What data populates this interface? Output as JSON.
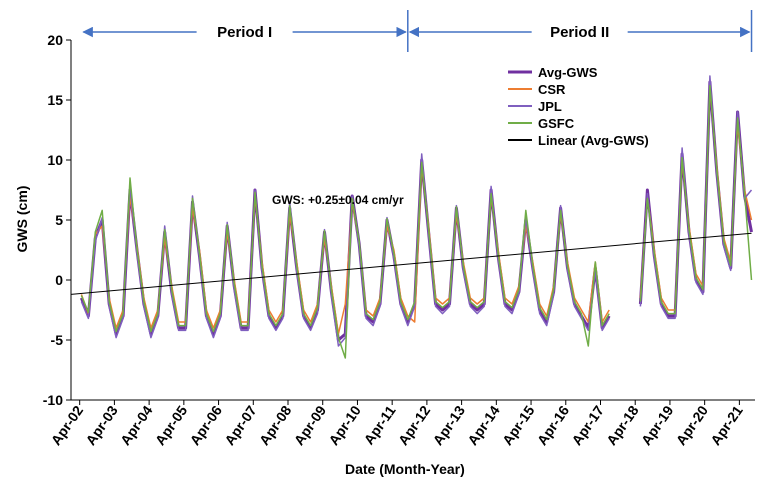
{
  "chart_data": {
    "type": "line",
    "title": "",
    "xlabel": "Date (Month-Year)",
    "ylabel": "GWS (cm)",
    "ylim": [
      -10,
      20
    ],
    "y_ticks": [
      -10,
      -5,
      0,
      5,
      10,
      15,
      20
    ],
    "x_ticks": [
      "Apr-02",
      "Apr-03",
      "Apr-04",
      "Apr-05",
      "Apr-06",
      "Apr-07",
      "Apr-08",
      "Apr-09",
      "Apr-10",
      "Apr-11",
      "Apr-12",
      "Apr-13",
      "Apr-14",
      "Apr-15",
      "Apr-16",
      "Apr-17",
      "Apr-18",
      "Apr-19",
      "Apr-20",
      "Apr-21"
    ],
    "grid": false,
    "legend_position": "top-right",
    "annotation": "GWS: +0.25±0.04  cm/yr",
    "periods": [
      {
        "label": "Period I",
        "start": 2002.3,
        "end": 2011.7
      },
      {
        "label": "Period II",
        "start": 2011.7,
        "end": 2021.6
      }
    ],
    "trend": {
      "name": "Linear (Avg-GWS)",
      "start": [
        2002.0,
        -1.2
      ],
      "end": [
        2021.6,
        3.9
      ]
    },
    "series": [
      {
        "name": "Avg-GWS",
        "color": "#7030a0",
        "width": 3.0,
        "x": [
          2002.3,
          2002.5,
          2002.7,
          2002.9,
          2003.1,
          2003.3,
          2003.5,
          2003.7,
          2003.9,
          2004.1,
          2004.3,
          2004.5,
          2004.7,
          2004.9,
          2005.1,
          2005.3,
          2005.5,
          2005.7,
          2005.9,
          2006.1,
          2006.3,
          2006.5,
          2006.7,
          2006.9,
          2007.1,
          2007.3,
          2007.5,
          2007.7,
          2007.9,
          2008.1,
          2008.3,
          2008.5,
          2008.7,
          2008.9,
          2009.1,
          2009.3,
          2009.5,
          2009.7,
          2009.9,
          2010.1,
          2010.3,
          2010.5,
          2010.7,
          2010.9,
          2011.1,
          2011.3,
          2011.5,
          2011.7,
          2011.9,
          2012.1,
          2012.3,
          2012.5,
          2012.7,
          2012.9,
          2013.1,
          2013.3,
          2013.5,
          2013.7,
          2013.9,
          2014.1,
          2014.3,
          2014.5,
          2014.7,
          2014.9,
          2015.1,
          2015.3,
          2015.5,
          2015.7,
          2015.9,
          2016.1,
          2016.3,
          2016.5,
          2016.7,
          2016.9,
          2017.1,
          2017.3,
          2017.5,
          null,
          2018.4,
          2018.6,
          2018.8,
          2019.0,
          2019.2,
          2019.4,
          2019.6,
          2019.8,
          2020.0,
          2020.2,
          2020.4,
          2020.6,
          2020.8,
          2021.0,
          2021.2,
          2021.4,
          2021.6
        ],
        "y": [
          -1.5,
          -3,
          3.5,
          5,
          -2,
          -4.5,
          -3,
          7.5,
          2.5,
          -2,
          -4.5,
          -3,
          4,
          -1,
          -4,
          -4,
          6.5,
          2,
          -3,
          -4.5,
          -3,
          4.5,
          -0.5,
          -4,
          -4,
          7.5,
          1,
          -3,
          -4,
          -3,
          6,
          1,
          -3,
          -4,
          -2.5,
          4,
          -1,
          -5,
          -4.5,
          7,
          3,
          -3,
          -3.5,
          -2,
          5,
          2,
          -2,
          -3.5,
          -2,
          10,
          4,
          -2,
          -2.5,
          -2,
          6,
          1,
          -2,
          -2.5,
          -2,
          7.5,
          2,
          -2,
          -2.5,
          -1,
          5,
          1,
          -2.5,
          -3.5,
          -1,
          6,
          1,
          -2,
          -3,
          -4,
          1,
          -4,
          -3,
          null,
          -2,
          7.5,
          2,
          -2,
          -3,
          -3,
          10.5,
          4,
          0,
          -1,
          16.5,
          9,
          3,
          1,
          14,
          7,
          4
        ]
      },
      {
        "name": "CSR",
        "color": "#ed7d31",
        "width": 1.5,
        "x": [
          2002.3,
          2002.5,
          2002.7,
          2002.9,
          2003.1,
          2003.3,
          2003.5,
          2003.7,
          2003.9,
          2004.1,
          2004.3,
          2004.5,
          2004.7,
          2004.9,
          2005.1,
          2005.3,
          2005.5,
          2005.7,
          2005.9,
          2006.1,
          2006.3,
          2006.5,
          2006.7,
          2006.9,
          2007.1,
          2007.3,
          2007.5,
          2007.7,
          2007.9,
          2008.1,
          2008.3,
          2008.5,
          2008.7,
          2008.9,
          2009.1,
          2009.3,
          2009.5,
          2009.7,
          2009.9,
          2010.1,
          2010.3,
          2010.5,
          2010.7,
          2010.9,
          2011.1,
          2011.3,
          2011.5,
          2011.7,
          2011.9,
          2012.1,
          2012.3,
          2012.5,
          2012.7,
          2012.9,
          2013.1,
          2013.3,
          2013.5,
          2013.7,
          2013.9,
          2014.1,
          2014.3,
          2014.5,
          2014.7,
          2014.9,
          2015.1,
          2015.3,
          2015.5,
          2015.7,
          2015.9,
          2016.1,
          2016.3,
          2016.5,
          2016.7,
          2016.9,
          2017.1,
          2017.3,
          2017.5,
          null,
          2018.4,
          2018.6,
          2018.8,
          2019.0,
          2019.2,
          2019.4,
          2019.6,
          2019.8,
          2020.0,
          2020.2,
          2020.4,
          2020.6,
          2020.8,
          2021.0,
          2021.2,
          2021.4,
          2021.6
        ],
        "y": [
          -1.2,
          -2.8,
          3.8,
          4.5,
          -1.5,
          -4,
          -2.5,
          7,
          2.8,
          -1.5,
          -4,
          -2.5,
          3.5,
          -0.5,
          -3.5,
          -3.5,
          6,
          2.5,
          -2.5,
          -4,
          -2.5,
          4,
          0,
          -3.5,
          -3.5,
          7,
          1.5,
          -2.5,
          -3.5,
          -2.5,
          5.5,
          1.5,
          -2.5,
          -3.5,
          -2,
          3.5,
          -0.5,
          -4.5,
          -2,
          6.5,
          3,
          -2.5,
          -3,
          -1.5,
          4.5,
          2.5,
          -1.5,
          -3,
          -3.5,
          9.5,
          4.5,
          -1.5,
          -2,
          -1.5,
          5.5,
          1.5,
          -1.5,
          -2,
          -1.5,
          7,
          2.5,
          -1.5,
          -2,
          -0.5,
          4.5,
          1.5,
          -2,
          -3,
          -0.5,
          5.5,
          1.5,
          -1.5,
          -2.5,
          -3.5,
          1.5,
          -3.5,
          -2.5,
          null,
          -1.5,
          7,
          2.5,
          -1.5,
          -2.5,
          -2.5,
          10,
          4.5,
          0.5,
          -0.5,
          16,
          9.5,
          3.5,
          1.5,
          13,
          7.5,
          5
        ]
      },
      {
        "name": "JPL",
        "color": "#7f5fbf",
        "width": 1.5,
        "x": [
          2002.3,
          2002.5,
          2002.7,
          2002.9,
          2003.1,
          2003.3,
          2003.5,
          2003.7,
          2003.9,
          2004.1,
          2004.3,
          2004.5,
          2004.7,
          2004.9,
          2005.1,
          2005.3,
          2005.5,
          2005.7,
          2005.9,
          2006.1,
          2006.3,
          2006.5,
          2006.7,
          2006.9,
          2007.1,
          2007.3,
          2007.5,
          2007.7,
          2007.9,
          2008.1,
          2008.3,
          2008.5,
          2008.7,
          2008.9,
          2009.1,
          2009.3,
          2009.5,
          2009.7,
          2009.9,
          2010.1,
          2010.3,
          2010.5,
          2010.7,
          2010.9,
          2011.1,
          2011.3,
          2011.5,
          2011.7,
          2011.9,
          2012.1,
          2012.3,
          2012.5,
          2012.7,
          2012.9,
          2013.1,
          2013.3,
          2013.5,
          2013.7,
          2013.9,
          2014.1,
          2014.3,
          2014.5,
          2014.7,
          2014.9,
          2015.1,
          2015.3,
          2015.5,
          2015.7,
          2015.9,
          2016.1,
          2016.3,
          2016.5,
          2016.7,
          2016.9,
          2017.1,
          2017.3,
          2017.5,
          null,
          2018.4,
          2018.6,
          2018.8,
          2019.0,
          2019.2,
          2019.4,
          2019.6,
          2019.8,
          2020.0,
          2020.2,
          2020.4,
          2020.6,
          2020.8,
          2021.0,
          2021.2,
          2021.4,
          2021.6
        ],
        "y": [
          -1.8,
          -3.2,
          3.2,
          5.2,
          -2.2,
          -4.8,
          -3.2,
          7.8,
          2.2,
          -2.2,
          -4.8,
          -3.2,
          4.5,
          -1.2,
          -4.2,
          -4.2,
          7,
          1.8,
          -3.2,
          -4.8,
          -3.2,
          4.8,
          -0.8,
          -4.2,
          -4.2,
          7.5,
          0.8,
          -3.2,
          -4.2,
          -3.2,
          6.5,
          0.8,
          -3.2,
          -4.2,
          -2.8,
          4.2,
          -1.2,
          -5.5,
          -4.8,
          7,
          2.8,
          -3.2,
          -3.8,
          -2.2,
          5.2,
          1.8,
          -2.2,
          -3.8,
          -2.2,
          10.5,
          3.8,
          -2.2,
          -2.8,
          -2.2,
          6.2,
          0.8,
          -2.2,
          -2.8,
          -2.2,
          7.8,
          1.8,
          -2.2,
          -2.8,
          -1.2,
          5.2,
          0.8,
          -2.8,
          -3.8,
          -1.2,
          6.2,
          0.8,
          -2.2,
          -3.2,
          -4.2,
          0.8,
          -4.2,
          -3.2,
          null,
          -2.2,
          7.2,
          1.8,
          -2.2,
          -3.2,
          -3.2,
          11,
          3.8,
          -0.2,
          -1.2,
          17,
          8.8,
          2.8,
          0.8,
          14,
          6.8,
          7.5
        ]
      },
      {
        "name": "GSFC",
        "color": "#70ad47",
        "width": 1.5,
        "x": [
          2002.3,
          2002.5,
          2002.7,
          2002.9,
          2003.1,
          2003.3,
          2003.5,
          2003.7,
          2003.9,
          2004.1,
          2004.3,
          2004.5,
          2004.7,
          2004.9,
          2005.1,
          2005.3,
          2005.5,
          2005.7,
          2005.9,
          2006.1,
          2006.3,
          2006.5,
          2006.7,
          2006.9,
          2007.1,
          2007.3,
          2007.5,
          2007.7,
          2007.9,
          2008.1,
          2008.3,
          2008.5,
          2008.7,
          2008.9,
          2009.1,
          2009.3,
          2009.5,
          2009.7,
          2009.9,
          2010.1,
          2010.3,
          2010.5,
          2010.7,
          2010.9,
          2011.1,
          2011.3,
          2011.5,
          2011.7,
          2011.9,
          2012.1,
          2012.3,
          2012.5,
          2012.7,
          2012.9,
          2013.1,
          2013.3,
          2013.5,
          2013.7,
          2013.9,
          2014.1,
          2014.3,
          2014.5,
          2014.7,
          2014.9,
          2015.1,
          2015.3,
          2015.5,
          2015.7,
          2015.9,
          2016.1,
          2016.3,
          2016.5,
          2016.7,
          2016.9,
          2017.1,
          2017.3,
          2017.5,
          null,
          2018.4,
          2018.6,
          2018.8,
          2019.0,
          2019.2,
          2019.4,
          2019.6,
          2019.8,
          2020.0,
          2020.2,
          2020.4,
          2020.6,
          2020.8,
          2021.0,
          2021.2,
          2021.4,
          2021.6
        ],
        "y": [
          -1.3,
          -2.7,
          4,
          5.8,
          -1.8,
          -4.3,
          -2.8,
          8.5,
          2.6,
          -1.8,
          -4.3,
          -2.8,
          4.2,
          -0.8,
          -3.8,
          -3.8,
          6.8,
          2.2,
          -2.8,
          -4.3,
          -2.8,
          4.6,
          -0.3,
          -3.8,
          -3.8,
          7.3,
          1.2,
          -2.8,
          -3.8,
          -2.8,
          6.2,
          1.2,
          -2.8,
          -3.8,
          -2.3,
          4.1,
          -0.8,
          -4.8,
          -6.5,
          6.8,
          3.2,
          -2.8,
          -3.3,
          -1.8,
          5.1,
          2.2,
          -1.8,
          -3.3,
          -1.8,
          9.8,
          4.2,
          -1.8,
          -2.3,
          -1.8,
          6.1,
          1.2,
          -1.8,
          -2.3,
          -1.8,
          7.2,
          2.2,
          -1.8,
          -2.3,
          -0.8,
          5.8,
          1.2,
          -2.3,
          -3.3,
          -0.8,
          5.8,
          1.2,
          -1.8,
          -2.8,
          -5.5,
          1.5,
          -3.8,
          -2.8,
          null,
          -1.8,
          6.8,
          2.2,
          -1.8,
          -2.8,
          -2.8,
          10.2,
          4.2,
          0.2,
          -0.8,
          16.2,
          9.2,
          3.2,
          1.2,
          13.5,
          7.2,
          0
        ]
      }
    ]
  }
}
